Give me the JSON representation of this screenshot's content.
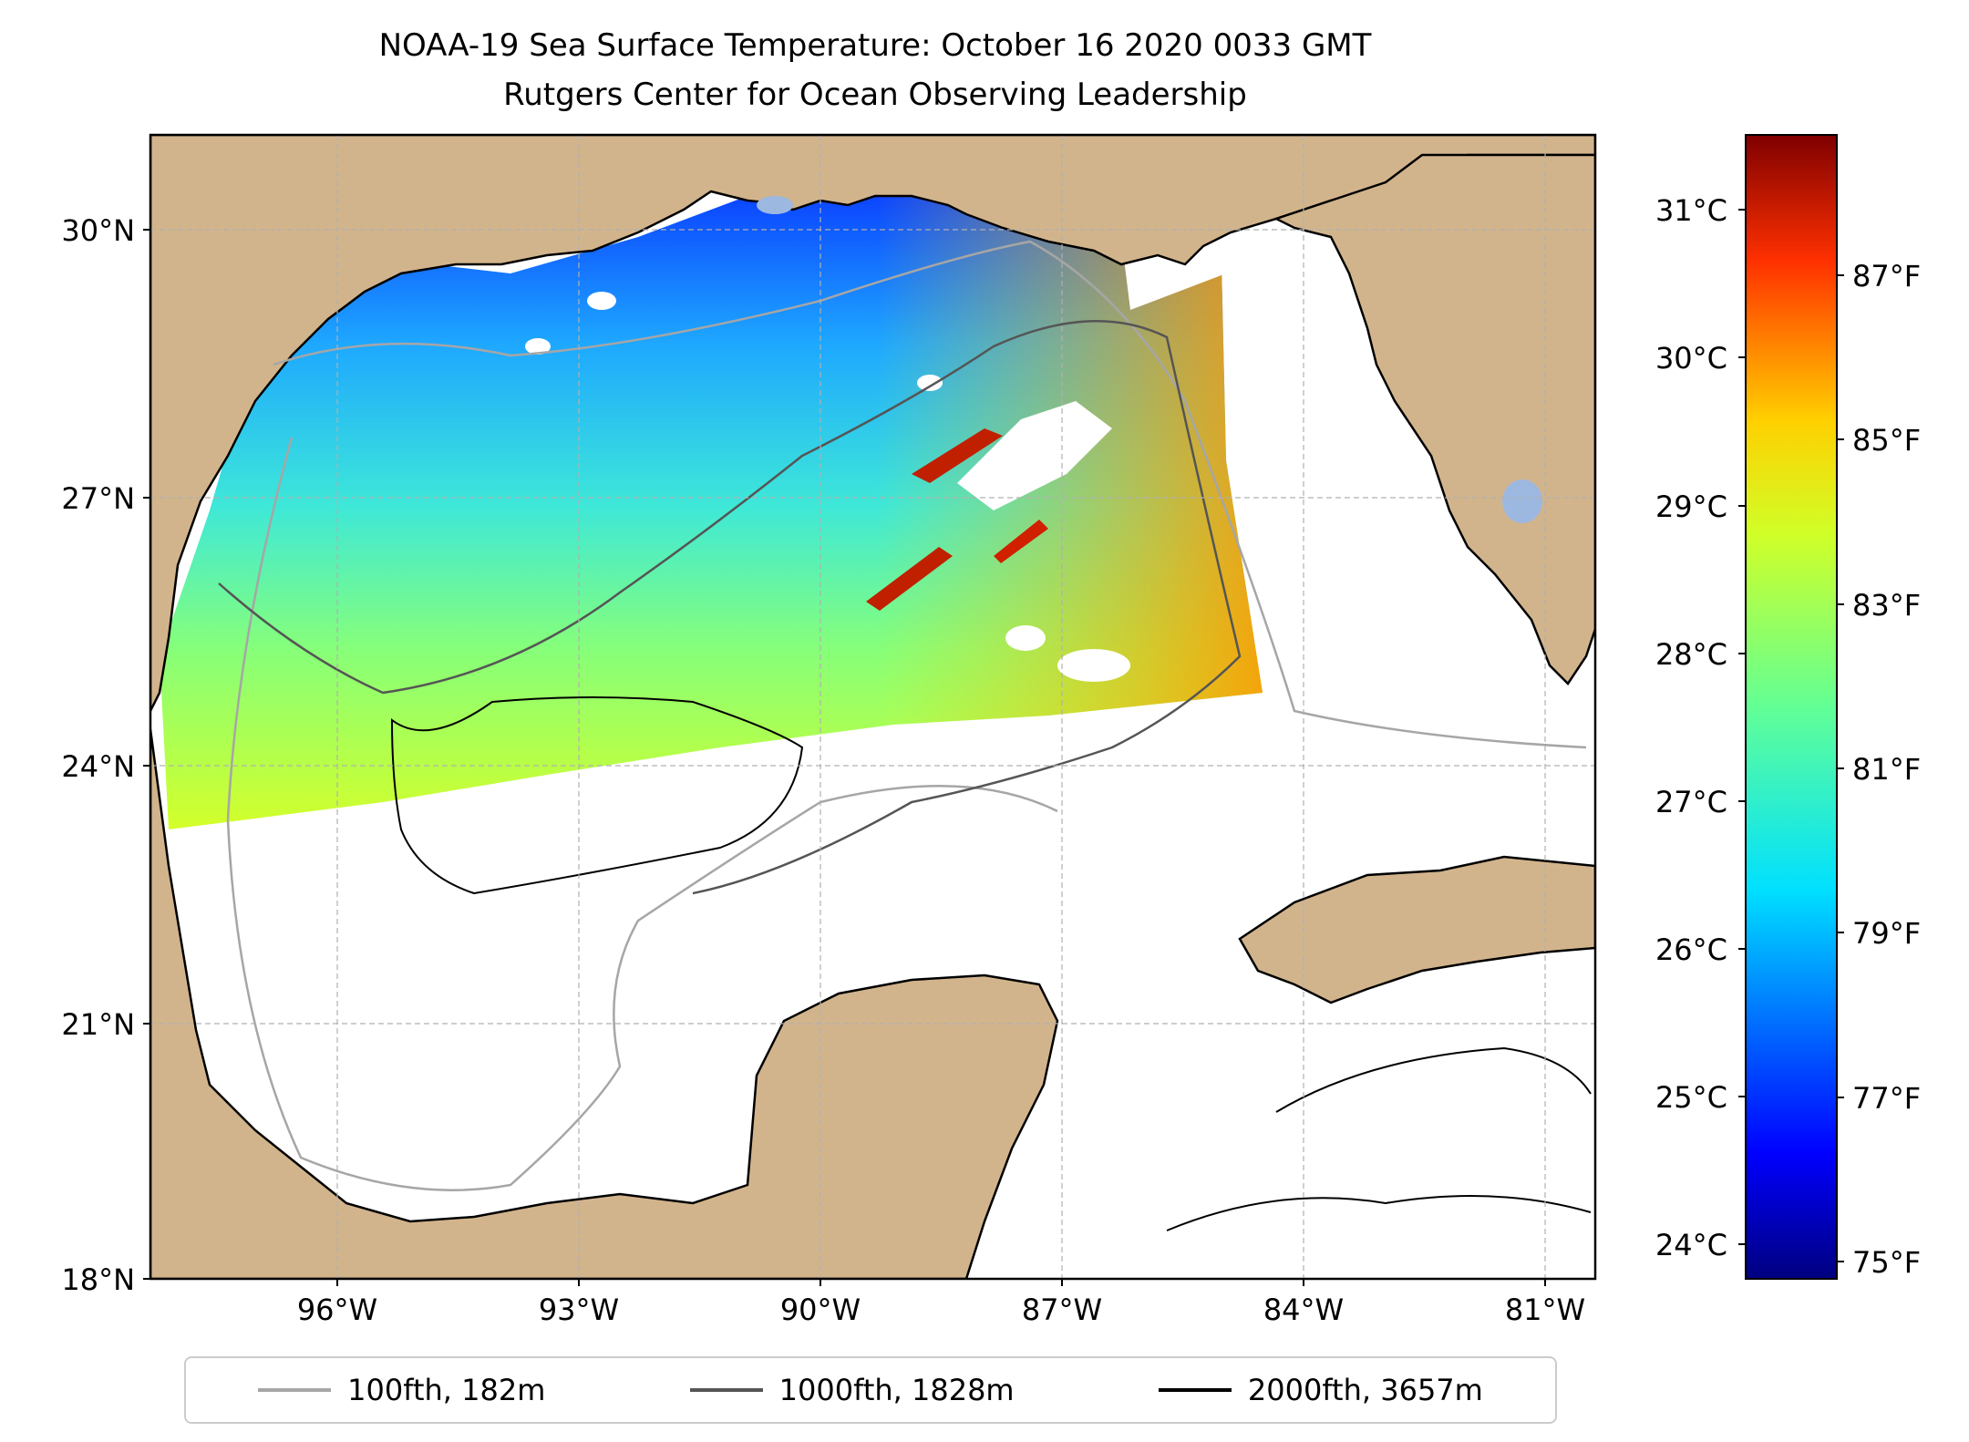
{
  "title": {
    "line1": "NOAA-19 Sea Surface Temperature: October 16 2020 0033 GMT",
    "line2": "Rutgers Center for Ocean Observing Leadership"
  },
  "map": {
    "lat_ticks": [
      "30°N",
      "27°N",
      "24°N",
      "21°N",
      "18°N"
    ],
    "lon_ticks": [
      "96°W",
      "93°W",
      "90°W",
      "87°W",
      "84°W",
      "81°W"
    ],
    "colors": {
      "land": "#d2b48c",
      "lakes": "#9db8e0",
      "coast": "#000000",
      "grid": "#b0b0b0"
    }
  },
  "colorbar": {
    "celsius_ticks": [
      "31°C",
      "30°C",
      "29°C",
      "28°C",
      "27°C",
      "26°C",
      "25°C",
      "24°C"
    ],
    "fahrenheit_ticks": [
      "87°F",
      "85°F",
      "83°F",
      "81°F",
      "79°F",
      "77°F",
      "75°F"
    ],
    "colormap": "jet"
  },
  "legend": {
    "items": [
      {
        "label": "100fth, 182m",
        "color": "#a6a6a6"
      },
      {
        "label": "1000fth, 1828m",
        "color": "#555555"
      },
      {
        "label": "2000fth, 3657m",
        "color": "#000000"
      }
    ]
  }
}
